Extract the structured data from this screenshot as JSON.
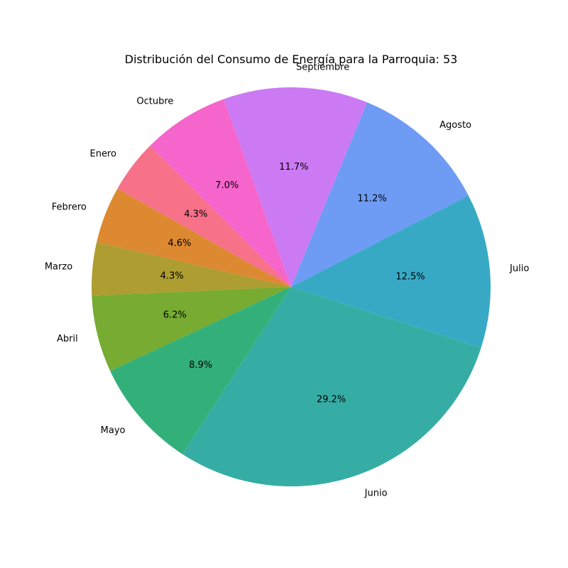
{
  "chart_data": {
    "type": "pie",
    "title": "Distribución del Consumo de Energía para la Parroquia: 53",
    "start_angle_deg": 135,
    "direction": "counterclockwise",
    "slices": [
      {
        "label": "Enero",
        "value": 4.3,
        "pct_label": "4.3%",
        "color": "#f77189"
      },
      {
        "label": "Febrero",
        "value": 4.6,
        "pct_label": "4.6%",
        "color": "#dc8932"
      },
      {
        "label": "Marzo",
        "value": 4.3,
        "pct_label": "4.3%",
        "color": "#ae9d31"
      },
      {
        "label": "Abril",
        "value": 6.2,
        "pct_label": "6.2%",
        "color": "#77ab31"
      },
      {
        "label": "Mayo",
        "value": 8.9,
        "pct_label": "8.9%",
        "color": "#33b07a"
      },
      {
        "label": "Junio",
        "value": 29.2,
        "pct_label": "29.2%",
        "color": "#36ada4"
      },
      {
        "label": "Julio",
        "value": 12.5,
        "pct_label": "12.5%",
        "color": "#38a9c5"
      },
      {
        "label": "Agosto",
        "value": 11.2,
        "pct_label": "11.2%",
        "color": "#6e9bf4"
      },
      {
        "label": "Septiembre",
        "value": 11.7,
        "pct_label": "11.7%",
        "color": "#cc7af4"
      },
      {
        "label": "Octubre",
        "value": 7.0,
        "pct_label": "7.0%",
        "color": "#f565cc"
      }
    ]
  }
}
